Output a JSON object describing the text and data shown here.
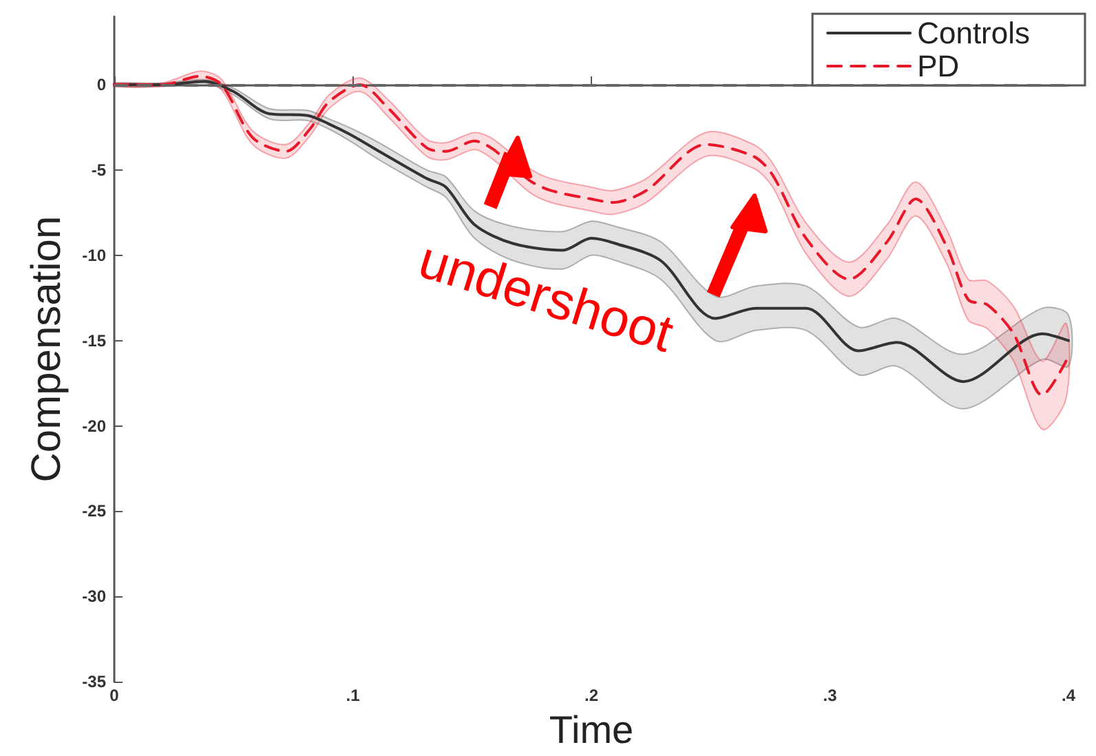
{
  "chart_data": {
    "type": "line",
    "xlabel": "Time",
    "ylabel": "Compensation",
    "xlim": [
      0,
      0.4
    ],
    "xticks": [
      0,
      {
        "value": 0.1,
        "label": ".1"
      },
      {
        "value": 0.2,
        "label": ".2"
      },
      {
        "value": 0.3,
        "label": ".3"
      },
      {
        "value": 0.4,
        "label": ".4"
      }
    ],
    "ylim": [
      -35,
      4
    ],
    "yticks": [
      0,
      -5,
      -10,
      -15,
      -20,
      -25,
      -30,
      -35
    ],
    "grid": false,
    "legend": "top right",
    "marker": "none",
    "ref_lines": [
      {
        "axis": "y",
        "value": 0,
        "color": "#666666",
        "line_style": "dashed"
      }
    ],
    "annotations": [
      "undershoot"
    ],
    "series": [
      {
        "name": "Controls",
        "color": "#333333",
        "line_style": "solid",
        "x": [
          0,
          0.02,
          0.038,
          0.05,
          0.065,
          0.081,
          0.09,
          0.1,
          0.111,
          0.131,
          0.139,
          0.151,
          0.167,
          0.188,
          0.2,
          0.21,
          0.229,
          0.252,
          0.269,
          0.29,
          0.312,
          0.328,
          0.356,
          0.389,
          0.4
        ],
        "values": [
          0,
          0,
          0.2,
          -0.4,
          -1.7,
          -1.8,
          -2.3,
          -3.0,
          -3.9,
          -5.5,
          -6.0,
          -8.2,
          -9.3,
          -9.7,
          -9.0,
          -9.3,
          -10.3,
          -13.7,
          -13.1,
          -13.1,
          -15.6,
          -15.1,
          -17.4,
          -14.6,
          -15.0
        ],
        "lower": [
          -0.1,
          -0.1,
          0.1,
          -0.6,
          -2.0,
          -2.1,
          -2.6,
          -3.4,
          -4.4,
          -6.0,
          -6.6,
          -9.0,
          -10.3,
          -10.8,
          -10.0,
          -10.3,
          -11.4,
          -15.0,
          -14.4,
          -14.4,
          -17.0,
          -16.5,
          -19.0,
          -16.1,
          -16.5
        ],
        "upper": [
          0.1,
          0.1,
          0.3,
          -0.2,
          -1.4,
          -1.5,
          -2.0,
          -2.6,
          -3.4,
          -5.0,
          -5.4,
          -7.4,
          -8.3,
          -8.6,
          -8.0,
          -8.3,
          -9.2,
          -12.4,
          -11.8,
          -11.8,
          -14.2,
          -13.7,
          -15.8,
          -13.1,
          -13.5
        ]
      },
      {
        "name": "PD",
        "color": "#e8182a",
        "line_style": "dashed",
        "x": [
          0,
          0.02,
          0.036,
          0.045,
          0.058,
          0.072,
          0.082,
          0.09,
          0.103,
          0.115,
          0.131,
          0.139,
          0.151,
          0.159,
          0.174,
          0.183,
          0.2,
          0.209,
          0.223,
          0.248,
          0.268,
          0.276,
          0.29,
          0.308,
          0.324,
          0.336,
          0.349,
          0.358,
          0.366,
          0.377,
          0.389,
          0.399
        ],
        "values": [
          0,
          0,
          0.5,
          0,
          -3.1,
          -3.9,
          -2.6,
          -1.0,
          0,
          -1.4,
          -3.7,
          -3.9,
          -3.3,
          -3.8,
          -5.6,
          -6.2,
          -6.7,
          -6.9,
          -6.2,
          -3.5,
          -4.2,
          -5.3,
          -9.0,
          -11.4,
          -9.2,
          -6.7,
          -9.5,
          -12.6,
          -12.9,
          -14.6,
          -18.2,
          -16.2
        ],
        "lower": [
          -0.1,
          -0.1,
          0.2,
          -0.3,
          -3.5,
          -4.3,
          -3.0,
          -1.4,
          -0.4,
          -1.9,
          -4.2,
          -4.4,
          -3.8,
          -4.4,
          -6.3,
          -6.9,
          -7.4,
          -7.6,
          -6.9,
          -4.2,
          -4.9,
          -6.0,
          -9.9,
          -12.4,
          -10.2,
          -7.7,
          -10.5,
          -13.8,
          -14.3,
          -16.2,
          -20.2,
          -18.4
        ],
        "upper": [
          0.1,
          0.1,
          0.8,
          0.3,
          -2.7,
          -3.5,
          -2.2,
          -0.6,
          0.4,
          -0.9,
          -3.2,
          -3.4,
          -2.8,
          -3.2,
          -4.9,
          -5.5,
          -6.0,
          -6.2,
          -5.5,
          -2.8,
          -3.5,
          -4.6,
          -8.1,
          -10.4,
          -8.2,
          -5.7,
          -8.5,
          -11.4,
          -11.5,
          -13.0,
          -16.2,
          -14.0
        ]
      }
    ]
  }
}
